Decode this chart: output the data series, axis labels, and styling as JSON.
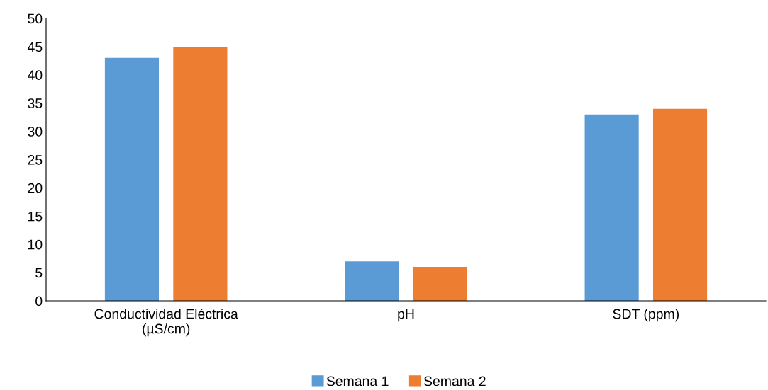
{
  "chart_data": {
    "type": "bar",
    "categories": [
      "Conductividad Eléctrica\n(µS/cm)",
      "pH",
      "SDT (ppm)"
    ],
    "series": [
      {
        "name": "Semana 1",
        "color": "#5b9bd5",
        "values": [
          43,
          7,
          33
        ]
      },
      {
        "name": "Semana 2",
        "color": "#ed7d31",
        "values": [
          45,
          6,
          34
        ]
      }
    ],
    "ylim": [
      0,
      50
    ],
    "yticks": [
      0,
      5,
      10,
      15,
      20,
      25,
      30,
      35,
      40,
      45,
      50
    ],
    "grid": false,
    "legend": "bottom"
  }
}
